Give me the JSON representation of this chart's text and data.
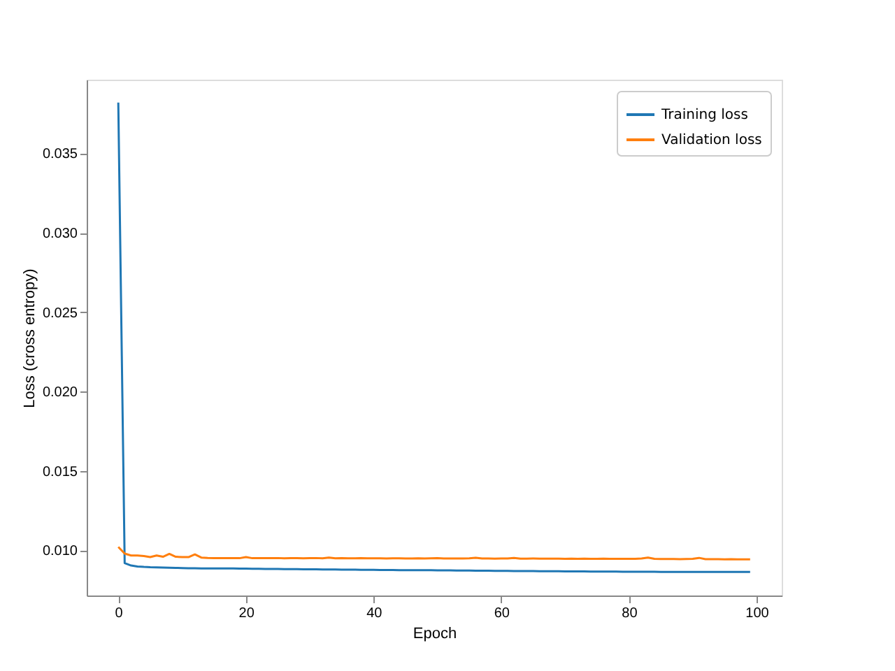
{
  "chart_data": {
    "type": "line",
    "xlabel": "Epoch",
    "ylabel": "Loss (cross entropy)",
    "x": [
      0,
      1,
      2,
      3,
      4,
      5,
      6,
      7,
      8,
      9,
      10,
      11,
      12,
      13,
      14,
      15,
      16,
      17,
      18,
      19,
      20,
      21,
      22,
      23,
      24,
      25,
      26,
      27,
      28,
      29,
      30,
      31,
      32,
      33,
      34,
      35,
      36,
      37,
      38,
      39,
      40,
      41,
      42,
      43,
      44,
      45,
      46,
      47,
      48,
      49,
      50,
      51,
      52,
      53,
      54,
      55,
      56,
      57,
      58,
      59,
      60,
      61,
      62,
      63,
      64,
      65,
      66,
      67,
      68,
      69,
      70,
      71,
      72,
      73,
      74,
      75,
      76,
      77,
      78,
      79,
      80,
      81,
      82,
      83,
      84,
      85,
      86,
      87,
      88,
      89,
      90,
      91,
      92,
      93,
      94,
      95,
      96,
      97,
      98,
      99
    ],
    "series": [
      {
        "name": "Training loss",
        "color": "#1f77b4",
        "values": [
          0.0382,
          0.0092,
          0.00905,
          0.00899,
          0.00896,
          0.00894,
          0.00893,
          0.00892,
          0.00891,
          0.0089,
          0.00889,
          0.00888,
          0.00888,
          0.00887,
          0.00887,
          0.00887,
          0.00886,
          0.00886,
          0.00886,
          0.00885,
          0.00885,
          0.00884,
          0.00884,
          0.00883,
          0.00883,
          0.00883,
          0.00882,
          0.00882,
          0.00882,
          0.00881,
          0.00881,
          0.00881,
          0.0088,
          0.0088,
          0.0088,
          0.00879,
          0.00879,
          0.00879,
          0.00878,
          0.00878,
          0.00878,
          0.00877,
          0.00877,
          0.00877,
          0.00876,
          0.00876,
          0.00876,
          0.00875,
          0.00875,
          0.00875,
          0.00874,
          0.00874,
          0.00874,
          0.00873,
          0.00873,
          0.00873,
          0.00872,
          0.00872,
          0.00872,
          0.00871,
          0.00871,
          0.00871,
          0.0087,
          0.0087,
          0.0087,
          0.0087,
          0.00869,
          0.00869,
          0.00869,
          0.00869,
          0.00868,
          0.00868,
          0.00868,
          0.00868,
          0.00867,
          0.00867,
          0.00867,
          0.00867,
          0.00867,
          0.00866,
          0.00866,
          0.00866,
          0.00866,
          0.00866,
          0.00866,
          0.00865,
          0.00865,
          0.00865,
          0.00865,
          0.00865,
          0.00865,
          0.00865,
          0.00864,
          0.00864,
          0.00864,
          0.00864,
          0.00864,
          0.00864,
          0.00864,
          0.00864
        ]
      },
      {
        "name": "Validation loss",
        "color": "#ff7f0e",
        "values": [
          0.01022,
          0.0098,
          0.00968,
          0.00968,
          0.00965,
          0.00958,
          0.00968,
          0.0096,
          0.00978,
          0.0096,
          0.00958,
          0.00958,
          0.00975,
          0.00955,
          0.00953,
          0.00952,
          0.00952,
          0.00951,
          0.00952,
          0.00951,
          0.00958,
          0.00951,
          0.00952,
          0.00951,
          0.00951,
          0.00952,
          0.0095,
          0.00951,
          0.00951,
          0.0095,
          0.00951,
          0.00952,
          0.0095,
          0.00955,
          0.0095,
          0.00951,
          0.0095,
          0.0095,
          0.00951,
          0.0095,
          0.0095,
          0.0095,
          0.00949,
          0.0095,
          0.0095,
          0.00949,
          0.00949,
          0.0095,
          0.00949,
          0.0095,
          0.00951,
          0.00949,
          0.00949,
          0.00949,
          0.00949,
          0.0095,
          0.00954,
          0.00949,
          0.00949,
          0.00948,
          0.00949,
          0.00949,
          0.00953,
          0.00948,
          0.00948,
          0.00949,
          0.00948,
          0.00948,
          0.00948,
          0.00948,
          0.00947,
          0.00948,
          0.00947,
          0.00948,
          0.00947,
          0.00947,
          0.00948,
          0.00947,
          0.00947,
          0.00947,
          0.00947,
          0.00947,
          0.00949,
          0.00955,
          0.00947,
          0.00946,
          0.00946,
          0.00946,
          0.00945,
          0.00946,
          0.00947,
          0.00953,
          0.00945,
          0.00945,
          0.00945,
          0.00944,
          0.00945,
          0.00944,
          0.00944,
          0.00944
        ]
      }
    ],
    "xlim": [
      -4.95,
      103.95
    ],
    "xticks": [
      0,
      20,
      40,
      60,
      80,
      100
    ],
    "ylim": [
      0.00716,
      0.03964
    ],
    "yticks": [
      {
        "value": 0.01,
        "label": "0.010"
      },
      0.015,
      {
        "value": 0.02,
        "label": "0.020"
      },
      0.025,
      {
        "value": 0.03,
        "label": "0.030"
      },
      0.035
    ],
    "legend": "top right",
    "grid": false,
    "marker": "none",
    "line_style": "solid"
  }
}
